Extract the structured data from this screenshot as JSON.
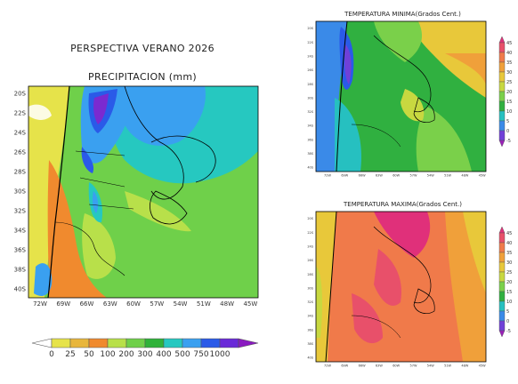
{
  "title": "PERSPECTIVA VERANO 2026",
  "precip": {
    "title": "PRECIPITACION (mm)",
    "lat_labels": [
      "20S",
      "22S",
      "24S",
      "26S",
      "28S",
      "30S",
      "32S",
      "34S",
      "36S",
      "38S",
      "40S"
    ],
    "lon_labels": [
      "72W",
      "69W",
      "66W",
      "63W",
      "60W",
      "57W",
      "54W",
      "51W",
      "48W",
      "45W"
    ],
    "legend_labels": [
      "0",
      "25",
      "50",
      "100",
      "200",
      "300",
      "400",
      "500",
      "750",
      "1000"
    ],
    "legend_colors": [
      "#ffffff",
      "#e6e34a",
      "#e8b63c",
      "#f08a2e",
      "#b8e04a",
      "#6fd04a",
      "#2fb23a",
      "#26c8c0",
      "#3aa0f0",
      "#2a5ae8",
      "#6a2ad8",
      "#8a1ac0"
    ]
  },
  "tmin": {
    "title": "TEMPERATURA MINIMA(Grados Cent.)",
    "lat_labels": [
      "20S",
      "22S",
      "24S",
      "26S",
      "28S",
      "30S",
      "32S",
      "34S",
      "36S",
      "38S",
      "40S"
    ],
    "lon_labels": [
      "72W",
      "69W",
      "66W",
      "63W",
      "60W",
      "57W",
      "54W",
      "51W",
      "48W",
      "45W"
    ],
    "legend_labels": [
      "45",
      "40",
      "35",
      "30",
      "25",
      "20",
      "15",
      "10",
      "5",
      "0",
      "-5"
    ],
    "legend_colors": [
      "#e0307a",
      "#e8506a",
      "#f07a4a",
      "#f0a03a",
      "#e8c83a",
      "#c8d840",
      "#7ad04a",
      "#30b040",
      "#26c0c0",
      "#3a8ae8",
      "#7040d8",
      "#9a20b8"
    ]
  },
  "tmax": {
    "title": "TEMPERATURA MAXIMA(Grados Cent.)",
    "lat_labels": [
      "20S",
      "22S",
      "24S",
      "26S",
      "28S",
      "30S",
      "32S",
      "34S",
      "36S",
      "38S",
      "40S"
    ],
    "lon_labels": [
      "72W",
      "69W",
      "66W",
      "63W",
      "60W",
      "57W",
      "54W",
      "51W",
      "48W",
      "45W"
    ],
    "legend_labels": [
      "45",
      "40",
      "35",
      "30",
      "25",
      "20",
      "15",
      "10",
      "5",
      "0",
      "-5"
    ],
    "legend_colors": [
      "#e0307a",
      "#e8506a",
      "#f07a4a",
      "#f0a03a",
      "#e8c83a",
      "#c8d840",
      "#7ad04a",
      "#30b040",
      "#26c0c0",
      "#3a8ae8",
      "#7040d8",
      "#9a20b8"
    ]
  }
}
